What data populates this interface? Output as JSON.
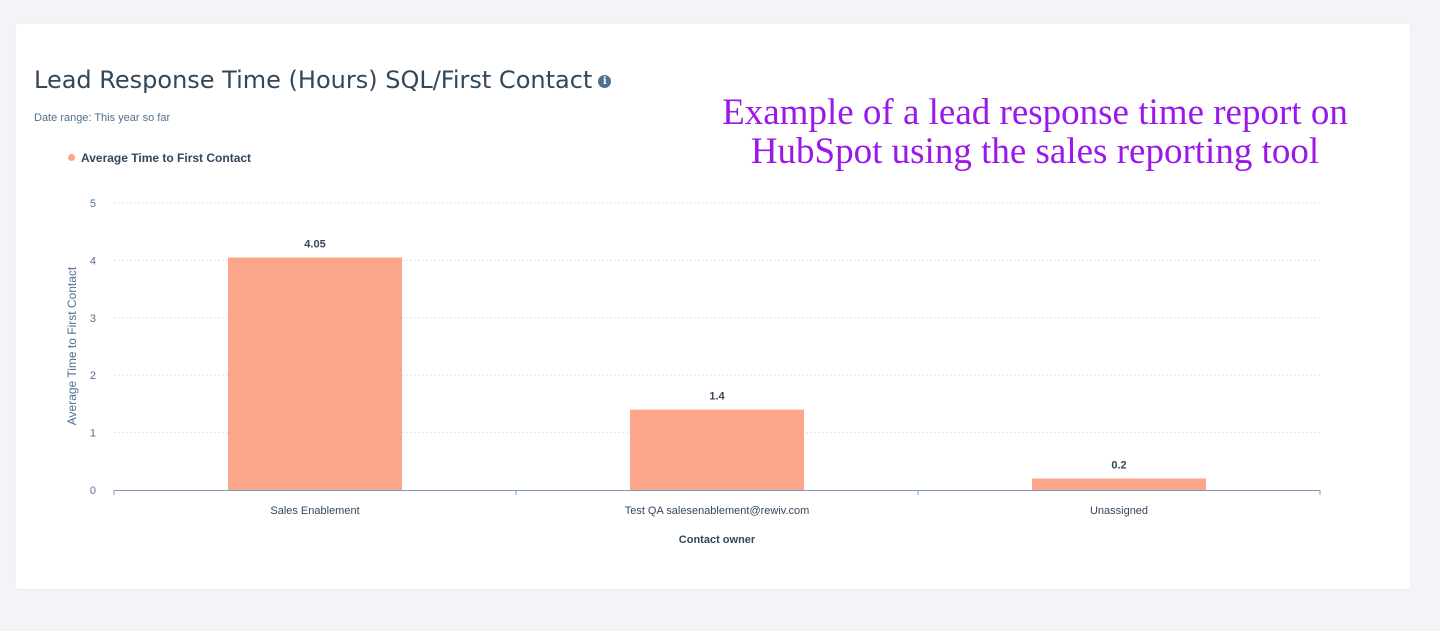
{
  "report": {
    "title": "Lead Response Time (Hours) SQL/First Contact",
    "info_icon": "info-icon",
    "subtitle": "Date range: This year so far",
    "overlay_caption": "Example of a lead response time report on HubSpot using the sales reporting tool"
  },
  "colors": {
    "bar": "#fba58a",
    "accent_text": "#9b18e8"
  },
  "chart_data": {
    "type": "bar",
    "title": "Lead Response Time (Hours) SQL/First Contact",
    "xlabel": "Contact owner",
    "ylabel": "Average Time to First Contact",
    "categories": [
      "Sales Enablement",
      "Test QA salesenablement@rewiv.com",
      "Unassigned"
    ],
    "series": [
      {
        "name": "Average Time to First Contact",
        "values": [
          4.05,
          1.4,
          0.2
        ],
        "value_labels": [
          "4.05",
          "1.4",
          "0.2"
        ]
      }
    ],
    "ylim": [
      0,
      5
    ],
    "yticks": [
      "0",
      "1",
      "2",
      "3",
      "4",
      "5"
    ],
    "grid": true,
    "legend_position": "top-left"
  }
}
